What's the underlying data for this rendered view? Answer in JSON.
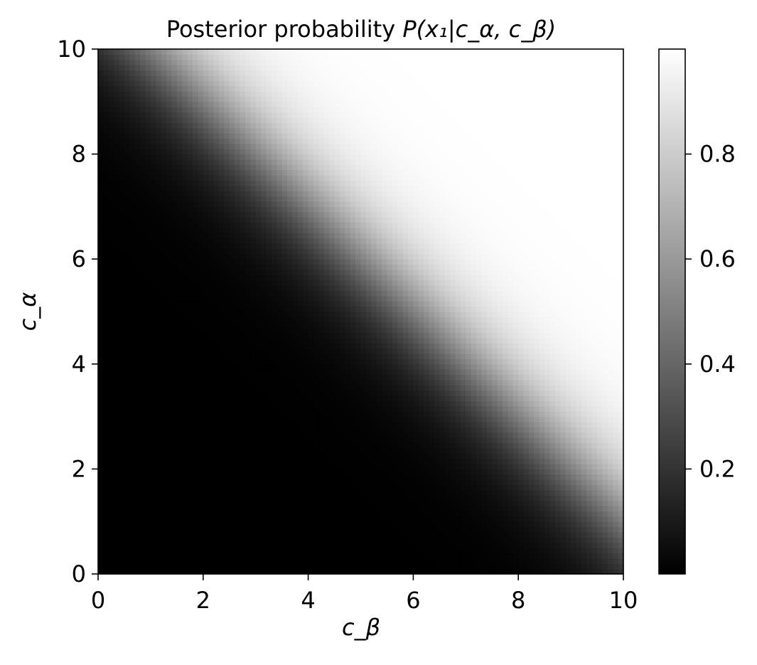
{
  "chart_data": {
    "type": "heatmap",
    "title": {
      "prefix": "Posterior probability ",
      "math": "P(x₁|c_α, c_β)"
    },
    "xlabel": "c_β",
    "ylabel": "c_α",
    "xlim": [
      0,
      10
    ],
    "ylim": [
      0,
      10
    ],
    "x_ticks": [
      {
        "value": 0,
        "label": "0"
      },
      {
        "value": 2,
        "label": "2"
      },
      {
        "value": 4,
        "label": "4"
      },
      {
        "value": 6,
        "label": "6"
      },
      {
        "value": 8,
        "label": "8"
      },
      {
        "value": 10,
        "label": "10"
      }
    ],
    "y_ticks": [
      {
        "value": 0,
        "label": "0"
      },
      {
        "value": 2,
        "label": "2"
      },
      {
        "value": 4,
        "label": "4"
      },
      {
        "value": 6,
        "label": "6"
      },
      {
        "value": 8,
        "label": "8"
      },
      {
        "value": 10,
        "label": "10"
      }
    ],
    "colormap": "gray",
    "colors": {
      "low": "#000000",
      "high": "#ffffff"
    },
    "color_range": [
      0.0,
      1.0
    ],
    "colorbar_ticks": [
      {
        "value": 0.2,
        "label": "0.2"
      },
      {
        "value": 0.4,
        "label": "0.4"
      },
      {
        "value": 0.6,
        "label": "0.6"
      },
      {
        "value": 0.8,
        "label": "0.8"
      }
    ],
    "surface": {
      "description": "logistic in (c_alpha + c_beta)",
      "midpoint_sum": 11.0,
      "steepness": 1.4
    },
    "grid": false
  }
}
